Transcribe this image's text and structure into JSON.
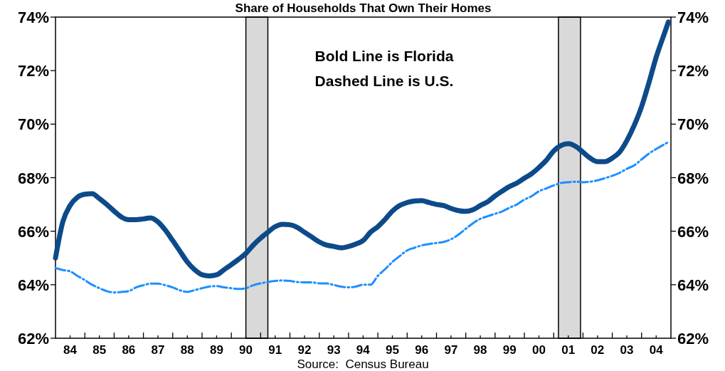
{
  "chart_data": {
    "type": "line",
    "title": "Share of Households That Own Their Homes",
    "annotations": [
      "Bold Line is Florida",
      "Dashed Line is U.S.",
      "Source:  Census Bureau"
    ],
    "x": [
      "1984-01",
      "1984-04",
      "1984-07",
      "1984-10",
      "1985-01",
      "1985-04",
      "1985-07",
      "1985-10",
      "1986-01",
      "1986-04",
      "1986-07",
      "1986-10",
      "1987-01",
      "1987-04",
      "1987-07",
      "1987-10",
      "1988-01",
      "1988-04",
      "1988-07",
      "1988-10",
      "1989-01",
      "1989-04",
      "1989-07",
      "1989-10",
      "1990-01",
      "1990-04",
      "1990-07",
      "1990-10",
      "1991-01",
      "1991-04",
      "1991-07",
      "1991-10",
      "1992-01",
      "1992-04",
      "1992-07",
      "1992-10",
      "1993-01",
      "1993-04",
      "1993-07",
      "1993-10",
      "1994-01",
      "1994-04",
      "1994-07",
      "1994-10",
      "1995-01",
      "1995-04",
      "1995-07",
      "1995-10",
      "1996-01",
      "1996-04",
      "1996-07",
      "1996-10",
      "1997-01",
      "1997-04",
      "1997-07",
      "1997-10",
      "1998-01",
      "1998-04",
      "1998-07",
      "1998-10",
      "1999-01",
      "1999-04",
      "1999-07",
      "1999-10",
      "2000-01",
      "2000-04",
      "2000-07",
      "2000-10",
      "2001-01",
      "2001-04",
      "2001-07",
      "2001-10",
      "2002-01",
      "2002-04",
      "2002-07",
      "2002-10",
      "2003-01",
      "2003-04",
      "2003-07",
      "2003-10",
      "2004-01",
      "2004-04",
      "2004-07",
      "2004-10",
      "2004-12"
    ],
    "series": [
      {
        "color": "#0d4a8a",
        "line_style": "solid",
        "values": [
          65.0,
          66.35,
          66.96,
          67.27,
          67.38,
          67.4,
          67.22,
          67.0,
          66.75,
          66.53,
          66.43,
          66.43,
          66.46,
          66.5,
          66.35,
          66.04,
          65.65,
          65.25,
          64.85,
          64.56,
          64.37,
          64.33,
          64.37,
          64.56,
          64.75,
          64.95,
          65.17,
          65.48,
          65.74,
          65.96,
          66.17,
          66.26,
          66.24,
          66.14,
          65.96,
          65.78,
          65.6,
          65.48,
          65.43,
          65.38,
          65.43,
          65.52,
          65.65,
          65.96,
          66.17,
          66.44,
          66.75,
          66.96,
          67.07,
          67.13,
          67.14,
          67.07,
          67.0,
          66.96,
          66.85,
          66.77,
          66.74,
          66.8,
          66.96,
          67.1,
          67.32,
          67.5,
          67.67,
          67.8,
          67.98,
          68.15,
          68.38,
          68.65,
          69.0,
          69.2,
          69.27,
          69.17,
          68.95,
          68.73,
          68.6,
          68.6,
          68.73,
          68.95,
          69.38,
          69.95,
          70.65,
          71.54,
          72.5,
          73.3,
          73.82
        ]
      },
      {
        "color": "#1e8fff",
        "line_style": "dashed",
        "values": [
          64.62,
          64.55,
          64.5,
          64.33,
          64.17,
          64.0,
          63.87,
          63.76,
          63.71,
          63.73,
          63.76,
          63.9,
          63.98,
          64.04,
          64.04,
          63.98,
          63.9,
          63.79,
          63.73,
          63.8,
          63.87,
          63.93,
          63.95,
          63.9,
          63.87,
          63.84,
          63.87,
          63.98,
          64.05,
          64.1,
          64.14,
          64.16,
          64.14,
          64.1,
          64.09,
          64.09,
          64.05,
          64.05,
          63.99,
          63.93,
          63.9,
          63.93,
          64.0,
          64.0,
          64.33,
          64.58,
          64.85,
          65.07,
          65.28,
          65.38,
          65.47,
          65.52,
          65.56,
          65.6,
          65.7,
          65.87,
          66.09,
          66.3,
          66.46,
          66.56,
          66.65,
          66.74,
          66.88,
          67.0,
          67.18,
          67.31,
          67.49,
          67.6,
          67.71,
          67.8,
          67.83,
          67.85,
          67.83,
          67.85,
          67.9,
          67.98,
          68.07,
          68.18,
          68.33,
          68.46,
          68.68,
          68.9,
          69.07,
          69.23,
          69.33
        ]
      }
    ],
    "xlim": [
      "1984-01",
      "2005-01"
    ],
    "xticks": [
      {
        "value": "1984-07",
        "label": "84"
      },
      {
        "value": "1985-01",
        "label": null
      },
      {
        "value": "1985-07",
        "label": "85"
      },
      {
        "value": "1986-01",
        "label": null
      },
      {
        "value": "1986-07",
        "label": "86"
      },
      {
        "value": "1987-01",
        "label": null
      },
      {
        "value": "1987-07",
        "label": "87"
      },
      {
        "value": "1988-01",
        "label": null
      },
      {
        "value": "1988-07",
        "label": "88"
      },
      {
        "value": "1989-01",
        "label": null
      },
      {
        "value": "1989-07",
        "label": "89"
      },
      {
        "value": "1990-01",
        "label": null
      },
      {
        "value": "1990-07",
        "label": "90"
      },
      {
        "value": "1991-01",
        "label": null
      },
      {
        "value": "1991-07",
        "label": "91"
      },
      {
        "value": "1992-01",
        "label": null
      },
      {
        "value": "1992-07",
        "label": "92"
      },
      {
        "value": "1993-01",
        "label": null
      },
      {
        "value": "1993-07",
        "label": "93"
      },
      {
        "value": "1994-01",
        "label": null
      },
      {
        "value": "1994-07",
        "label": "94"
      },
      {
        "value": "1995-01",
        "label": null
      },
      {
        "value": "1995-07",
        "label": "95"
      },
      {
        "value": "1996-01",
        "label": null
      },
      {
        "value": "1996-07",
        "label": "96"
      },
      {
        "value": "1997-01",
        "label": null
      },
      {
        "value": "1997-07",
        "label": "97"
      },
      {
        "value": "1998-01",
        "label": null
      },
      {
        "value": "1998-07",
        "label": "98"
      },
      {
        "value": "1999-01",
        "label": null
      },
      {
        "value": "1999-07",
        "label": "99"
      },
      {
        "value": "2000-01",
        "label": null
      },
      {
        "value": "2000-07",
        "label": "00"
      },
      {
        "value": "2001-01",
        "label": null
      },
      {
        "value": "2001-07",
        "label": "01"
      },
      {
        "value": "2002-01",
        "label": null
      },
      {
        "value": "2002-07",
        "label": "02"
      },
      {
        "value": "2003-01",
        "label": null
      },
      {
        "value": "2003-07",
        "label": "03"
      },
      {
        "value": "2004-01",
        "label": null
      },
      {
        "value": "2004-07",
        "label": "04"
      }
    ],
    "ylim": [
      62,
      74
    ],
    "yticks": [
      {
        "value": 62,
        "label": "62%"
      },
      {
        "value": 64,
        "label": "64%"
      },
      {
        "value": 66,
        "label": "66%"
      },
      {
        "value": 68,
        "label": "68%"
      },
      {
        "value": 70,
        "label": "70%"
      },
      {
        "value": 72,
        "label": "72%"
      },
      {
        "value": 74,
        "label": "74%"
      }
    ],
    "y2lim": [
      62,
      74
    ],
    "y2ticks": [
      {
        "value": 62,
        "label": "62%"
      },
      {
        "value": 64,
        "label": "64%"
      },
      {
        "value": 66,
        "label": "66%"
      },
      {
        "value": 68,
        "label": "68%"
      },
      {
        "value": 70,
        "label": "70%"
      },
      {
        "value": 72,
        "label": "72%"
      },
      {
        "value": 74,
        "label": "74%"
      }
    ],
    "bands": [
      {
        "axis": "x",
        "from": "1990-07",
        "to": "1991-04",
        "color": "#d9d9d9"
      },
      {
        "axis": "x",
        "from": "2001-03",
        "to": "2001-12",
        "color": "#d9d9d9"
      }
    ],
    "grid": false
  }
}
